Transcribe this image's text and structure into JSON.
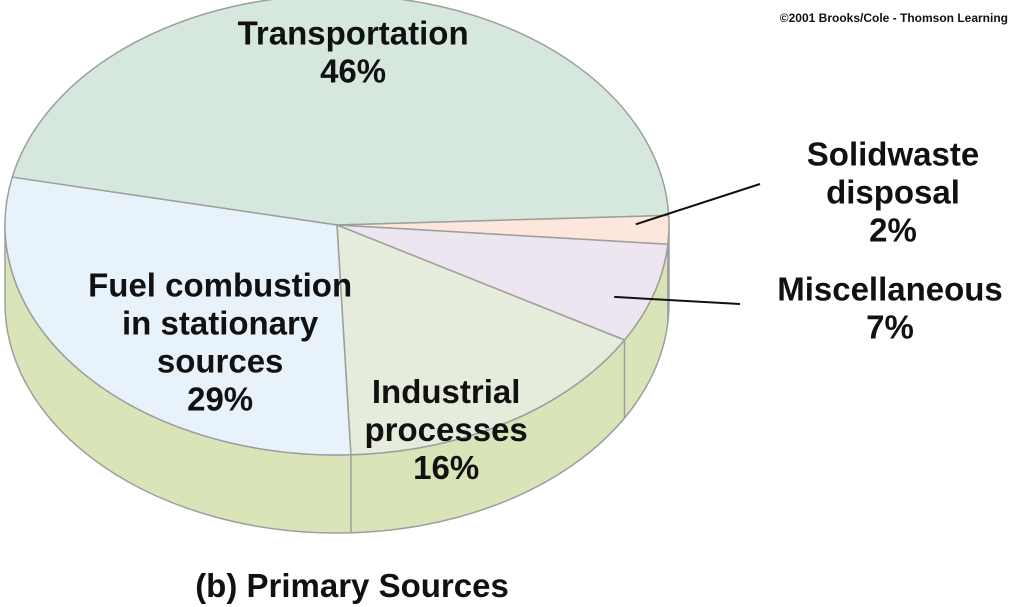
{
  "copyright": "©2001 Brooks/Cole - Thomson Learning",
  "chart_data": {
    "type": "pie",
    "title": "(b) Primary Sources",
    "slices": [
      {
        "label": "Transportation",
        "lines": [
          "Transportation"
        ],
        "pct_text": "46%",
        "value": 46,
        "color": "#d6e8dd"
      },
      {
        "label": "Solidwaste disposal",
        "lines": [
          "Solidwaste",
          "disposal"
        ],
        "pct_text": "2%",
        "value": 2,
        "color": "#fde7dc"
      },
      {
        "label": "Miscellaneous",
        "lines": [
          "Miscellaneous"
        ],
        "pct_text": "7%",
        "value": 7,
        "color": "#ede6f1"
      },
      {
        "label": "Industrial processes",
        "lines": [
          "Industrial",
          "processes"
        ],
        "pct_text": "16%",
        "value": 16,
        "color": "#e6ecdc"
      },
      {
        "label": "Fuel combustion in stationary sources",
        "lines": [
          "Fuel combustion",
          "in stationary",
          "sources"
        ],
        "pct_text": "29%",
        "value": 29,
        "color": "#e8f2fb"
      }
    ],
    "side_color": "#d9e4b8",
    "edge_color": "#9e9e9e"
  }
}
